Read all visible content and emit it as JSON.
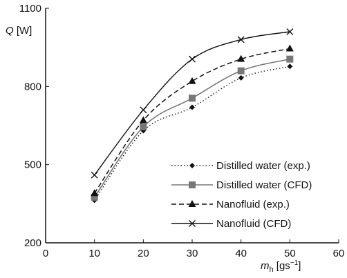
{
  "chart_data": {
    "type": "line",
    "x_ticks": [
      "0",
      "10",
      "20",
      "30",
      "40",
      "50",
      "60"
    ],
    "y_ticks": [
      "200",
      "500",
      "800",
      "1100"
    ],
    "xlim": [
      0,
      60
    ],
    "ylim": [
      200,
      1100
    ],
    "ylabel": {
      "symbol": "Q",
      "unit": "[W]"
    },
    "xlabel": {
      "symbol": "m",
      "subscript": "h",
      "unit": "[gs",
      "exponent": "−1",
      "unit_close": "]"
    },
    "legend_position": "bottom-right",
    "grid": false,
    "series": [
      {
        "name": "Distilled water (exp.)",
        "line_style": "dotted",
        "marker": "diamond",
        "color": "#111111",
        "x": [
          10,
          20,
          30,
          40,
          50
        ],
        "values": [
          363,
          630,
          720,
          833,
          877
        ]
      },
      {
        "name": "Distilled water (CFD)",
        "line_style": "solid-gray",
        "marker": "square",
        "color": "#777777",
        "x": [
          10,
          20,
          30,
          40,
          50
        ],
        "values": [
          375,
          645,
          755,
          860,
          905
        ]
      },
      {
        "name": "Nanofluid (exp.)",
        "line_style": "dashed",
        "marker": "triangle",
        "color": "#111111",
        "x": [
          10,
          20,
          30,
          40,
          50
        ],
        "values": [
          390,
          670,
          820,
          905,
          945
        ]
      },
      {
        "name": "Nanofluid (CFD)",
        "line_style": "solid",
        "marker": "x",
        "color": "#111111",
        "x": [
          10,
          20,
          30,
          40,
          50
        ],
        "values": [
          460,
          710,
          905,
          980,
          1010
        ]
      }
    ]
  }
}
